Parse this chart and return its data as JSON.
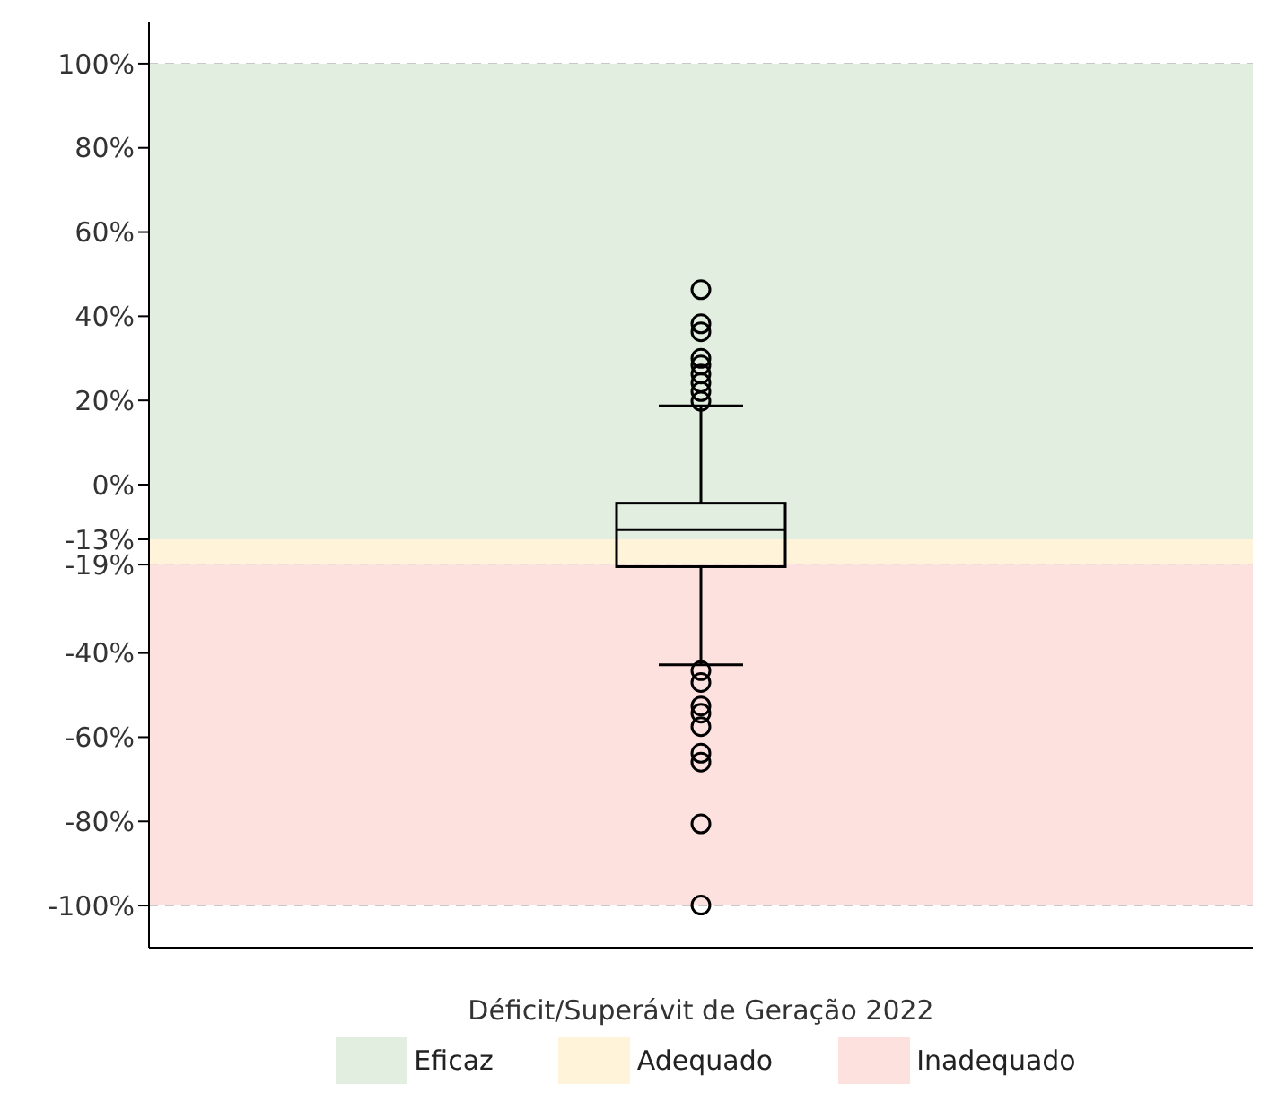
{
  "chart_data": {
    "type": "box",
    "categories": [
      null
    ],
    "xlabel": "Déficit/Superávit de Geração 2022",
    "boxes": [
      {
        "low": -42.8,
        "q1": -19.5,
        "median": -10.7,
        "q3": -4.4,
        "high": 18.7,
        "outliers": [
          46.3,
          38.2,
          36.3,
          30,
          28.4,
          26.3,
          24.2,
          22.1,
          19.8,
          -44.2,
          -47,
          -52.6,
          -54.3,
          -57.5,
          -63.8,
          -65.9,
          -80.6,
          -99.9
        ]
      }
    ],
    "ylim": [
      -110,
      110
    ],
    "yticks": [
      {
        "value": 100,
        "label": "100%"
      },
      {
        "value": 80,
        "label": "80%"
      },
      {
        "value": 60,
        "label": "60%"
      },
      {
        "value": 40,
        "label": "40%"
      },
      {
        "value": 20,
        "label": "20%"
      },
      {
        "value": 0,
        "label": "0%"
      },
      {
        "value": -13,
        "label": "-13%"
      },
      {
        "value": -19,
        "label": "-19%"
      },
      {
        "value": -40,
        "label": "-40%"
      },
      {
        "value": -60,
        "label": "-60%"
      },
      {
        "value": -80,
        "label": "-80%"
      },
      {
        "value": -100,
        "label": "-100%"
      }
    ],
    "bands": [
      {
        "axis": "y",
        "from": -13,
        "to": 100,
        "label": "Eficaz",
        "color": "#e2efe0"
      },
      {
        "axis": "y",
        "from": -19,
        "to": -13,
        "label": "Adequado",
        "color": "#fff3d9"
      },
      {
        "axis": "y",
        "from": -100,
        "to": -19,
        "label": "Inadequado",
        "color": "#fde1df"
      }
    ],
    "grid": "y",
    "legend": "bottom",
    "marker": "circle"
  }
}
